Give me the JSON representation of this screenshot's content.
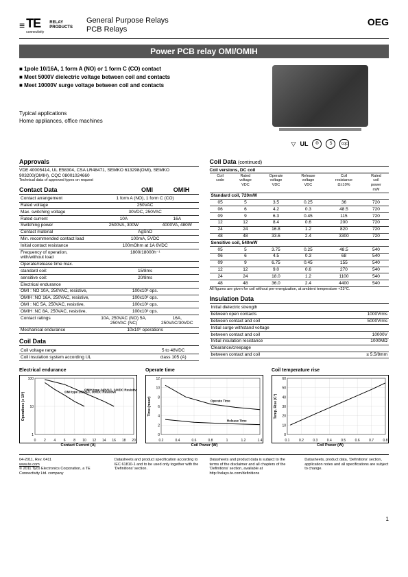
{
  "header": {
    "logo_main": "TE",
    "logo_sub": "connectivity",
    "logo_relay1": "RELAY",
    "logo_relay2": "PRODUCTS",
    "title1": "General Purpose Relays",
    "title2": "PCB Relays",
    "brand": "OEG"
  },
  "product_title": "Power PCB relay OMI/OMIH",
  "features": [
    "1pole 10/16A, 1 form A (NO) or 1 form C (CO) contact",
    "Meet 5000V dielectric voltage between coil and contacts",
    "Meet 10000V surge voltage between coil and contacts"
  ],
  "typical": {
    "label": "Typical applications",
    "text": "Home appliances, office machines"
  },
  "cert_marks": [
    "▽",
    "UL",
    "®",
    "S",
    "cqc"
  ],
  "approvals": {
    "title": "Approvals",
    "text": "VDE 40005414, UL E58304, CSA LR48471, SEMKO 613298(OMI), SEMKO 903200(OMIH), CQC 08001024660",
    "note": "Technical data of approved types on request"
  },
  "contact_data": {
    "title": "Contact Data",
    "col1": "OMI",
    "col2": "OMIH",
    "rows": [
      [
        "Contact arrangement",
        "1 form A (NO), 1 form C (CO)"
      ],
      [
        "Rated voltage",
        "250VAC"
      ],
      [
        "Max. switching voltage",
        "30VDC, 250VAC"
      ],
      [
        "Rated current",
        "10A",
        "16A"
      ],
      [
        "Switching power",
        "2500VA, 300W",
        "4000VA, 480W"
      ],
      [
        "Contact material",
        "AgSnO"
      ],
      [
        "Min. recommended contact load",
        "100mA, 5VDC"
      ],
      [
        "Initial contact resistance",
        "100mOhm at 1A 6VDC"
      ],
      [
        "Frequency of operation, with/without load",
        "1800/18000h⁻¹"
      ]
    ],
    "operate_label": "Operate/release time max.",
    "operate_rows": [
      [
        "  standard coil:",
        "15/8ms"
      ],
      [
        "  sensitive coil:",
        "20/8ms"
      ]
    ],
    "endurance_label": "Electrical endurance",
    "endurance_rows": [
      [
        "  OMI : NO 10A, 250VAC, resistive,",
        "100x10³ ops."
      ],
      [
        "  OMIH :NO 16A, 250VAC, resistive,",
        "100x10³ ops."
      ],
      [
        "  OMI : NC 5A, 250VAC, resistive,",
        "100x10³ ops."
      ],
      [
        "  OMIH :NC 8A, 250VAC, resistive,",
        "100x10³ ops."
      ]
    ],
    "ratings_label": "Contact ratings",
    "ratings": [
      "10A, 250VAC (NO) 5A, 250VAC (NC)",
      "16A, 250VAC/30VDC"
    ],
    "mech": [
      "Mechanical endurance",
      "10x10⁶ operations"
    ]
  },
  "coil_data": {
    "title": "Coil Data",
    "rows": [
      [
        "Coil voltage range",
        "5 to 48VDC"
      ],
      [
        "Coil insulation system according UL",
        "class 105 (A)"
      ]
    ]
  },
  "coil_data_cont": {
    "title": "Coil Data",
    "sub": "(continued)",
    "versions_label": "Coil versions, DC coil",
    "headers": [
      "Coil code",
      "Rated voltage VDC",
      "Operate voltage VDC",
      "Release voltage VDC",
      "Coil resistance Ω±10%",
      "Rated coil power mW"
    ],
    "std_label": "Standard coil, 720mW",
    "std_rows": [
      [
        "05",
        "5",
        "3.5",
        "0.25",
        "36",
        "720"
      ],
      [
        "06",
        "6",
        "4.2",
        "0.3",
        "48.5",
        "720"
      ],
      [
        "09",
        "9",
        "6.3",
        "0.45",
        "115",
        "720"
      ],
      [
        "12",
        "12",
        "8.4",
        "0.6",
        "200",
        "720"
      ],
      [
        "24",
        "24",
        "16.8",
        "1.2",
        "820",
        "720"
      ],
      [
        "48",
        "48",
        "33.6",
        "2.4",
        "3300",
        "720"
      ]
    ],
    "sens_label": "Sensitive coil, 540mW",
    "sens_rows": [
      [
        "05",
        "5",
        "3.75",
        "0.25",
        "48.5",
        "540"
      ],
      [
        "06",
        "6",
        "4.5",
        "0.3",
        "68",
        "540"
      ],
      [
        "09",
        "9",
        "6.75",
        "0.45",
        "155",
        "540"
      ],
      [
        "12",
        "12",
        "9.0",
        "0.6",
        "270",
        "540"
      ],
      [
        "24",
        "24",
        "18.0",
        "1.2",
        "1100",
        "540"
      ],
      [
        "48",
        "48",
        "36.0",
        "2.4",
        "4400",
        "540"
      ]
    ],
    "note": "All figures are given for coil without pre-energization, at ambient temperature +23°C."
  },
  "insulation": {
    "title": "Insulation Data",
    "rows": [
      [
        "Initial dielectric strength",
        ""
      ],
      [
        "  between open contacts",
        "1000Vrms"
      ],
      [
        "  between contact and coil",
        "5000Vrms"
      ],
      [
        "Initial surge withstand voltage",
        ""
      ],
      [
        "  between contact and coil",
        "10000V"
      ],
      [
        "Initial insulation resistance",
        "1000MΩ"
      ],
      [
        "Clearance/creepage",
        ""
      ],
      [
        "  between contact and coil",
        "≥ 5.5/8mm"
      ]
    ]
  },
  "charts": {
    "c1": {
      "title": "Electrical endurance",
      "xlabel": "Contact Current (A)",
      "ylabel": "Operations (x 10³)",
      "xmin": 0,
      "xmax": 20,
      "xticks": [
        0,
        2,
        4,
        6,
        8,
        10,
        12,
        14,
        16,
        18,
        20
      ],
      "ymin": 1,
      "ymax": 100,
      "ylog": true,
      "series": [
        {
          "label": "OMIH type 240VAC, 24VDC Resistive",
          "color": "#000",
          "points": [
            [
              2,
              90
            ],
            [
              6,
              60
            ],
            [
              10,
              30
            ],
            [
              14,
              15
            ],
            [
              16,
              10
            ]
          ]
        },
        {
          "label": "OMI type 250VAC, 30VDC Resistive",
          "color": "#000",
          "points": [
            [
              2,
              70
            ],
            [
              4,
              40
            ],
            [
              6,
              25
            ],
            [
              8,
              15
            ],
            [
              10,
              10
            ]
          ]
        }
      ]
    },
    "c2": {
      "title": "Operate time",
      "xlabel": "Coil Power (W)",
      "ylabel": "Time (msec)",
      "xmin": 0.2,
      "xmax": 1.4,
      "xticks": [
        0.2,
        0.4,
        0.6,
        0.8,
        1.0,
        1.2,
        1.4
      ],
      "ymin": 0,
      "ymax": 12,
      "yticks": [
        0,
        2,
        4,
        6,
        8,
        10,
        12
      ],
      "lines": [
        {
          "label": "Operate Time",
          "points": [
            [
              0.25,
              10.5
            ],
            [
              0.5,
              8
            ],
            [
              0.8,
              6.5
            ],
            [
              1.1,
              5.8
            ],
            [
              1.4,
              5.3
            ]
          ]
        },
        {
          "label": "Release Time",
          "points": [
            [
              0.25,
              3.2
            ],
            [
              0.6,
              2.6
            ],
            [
              1.0,
              2.3
            ],
            [
              1.4,
              2.1
            ]
          ]
        }
      ]
    },
    "c3": {
      "title": "Coil temperature rise",
      "xlabel": "Coil Power (W)",
      "ylabel": "Temp. Rise (C°)",
      "xmin": 0.1,
      "xmax": 0.8,
      "xticks": [
        0.1,
        0.2,
        0.3,
        0.4,
        0.5,
        0.6,
        0.7,
        0.8
      ],
      "ymin": 0,
      "ymax": 60,
      "yticks": [
        0,
        10,
        20,
        30,
        40,
        50,
        60
      ],
      "lines": [
        {
          "points": [
            [
              0.12,
              10
            ],
            [
              0.3,
              22
            ],
            [
              0.5,
              35
            ],
            [
              0.7,
              48
            ],
            [
              0.8,
              55
            ]
          ]
        }
      ]
    }
  },
  "footer": {
    "left1": "04-2011, Rev. 0411",
    "left2": "www.te.com",
    "left3": "© 2011 Tyco Electronics Corporation, a TE Connectivity Ltd. company",
    "mid": "Datasheets and product specification according to IEC 61810-1 and to be used only together with the 'Definitions' section.",
    "right1": "Datasheets and product data is subject to the terms of the disclaimer and all chapters of the 'Definitions' section, available at http://relays.te.com/definitions",
    "right2": "Datasheets, product data, 'Definitions' section, application notes and all specifications are subject to change."
  },
  "page": "1"
}
